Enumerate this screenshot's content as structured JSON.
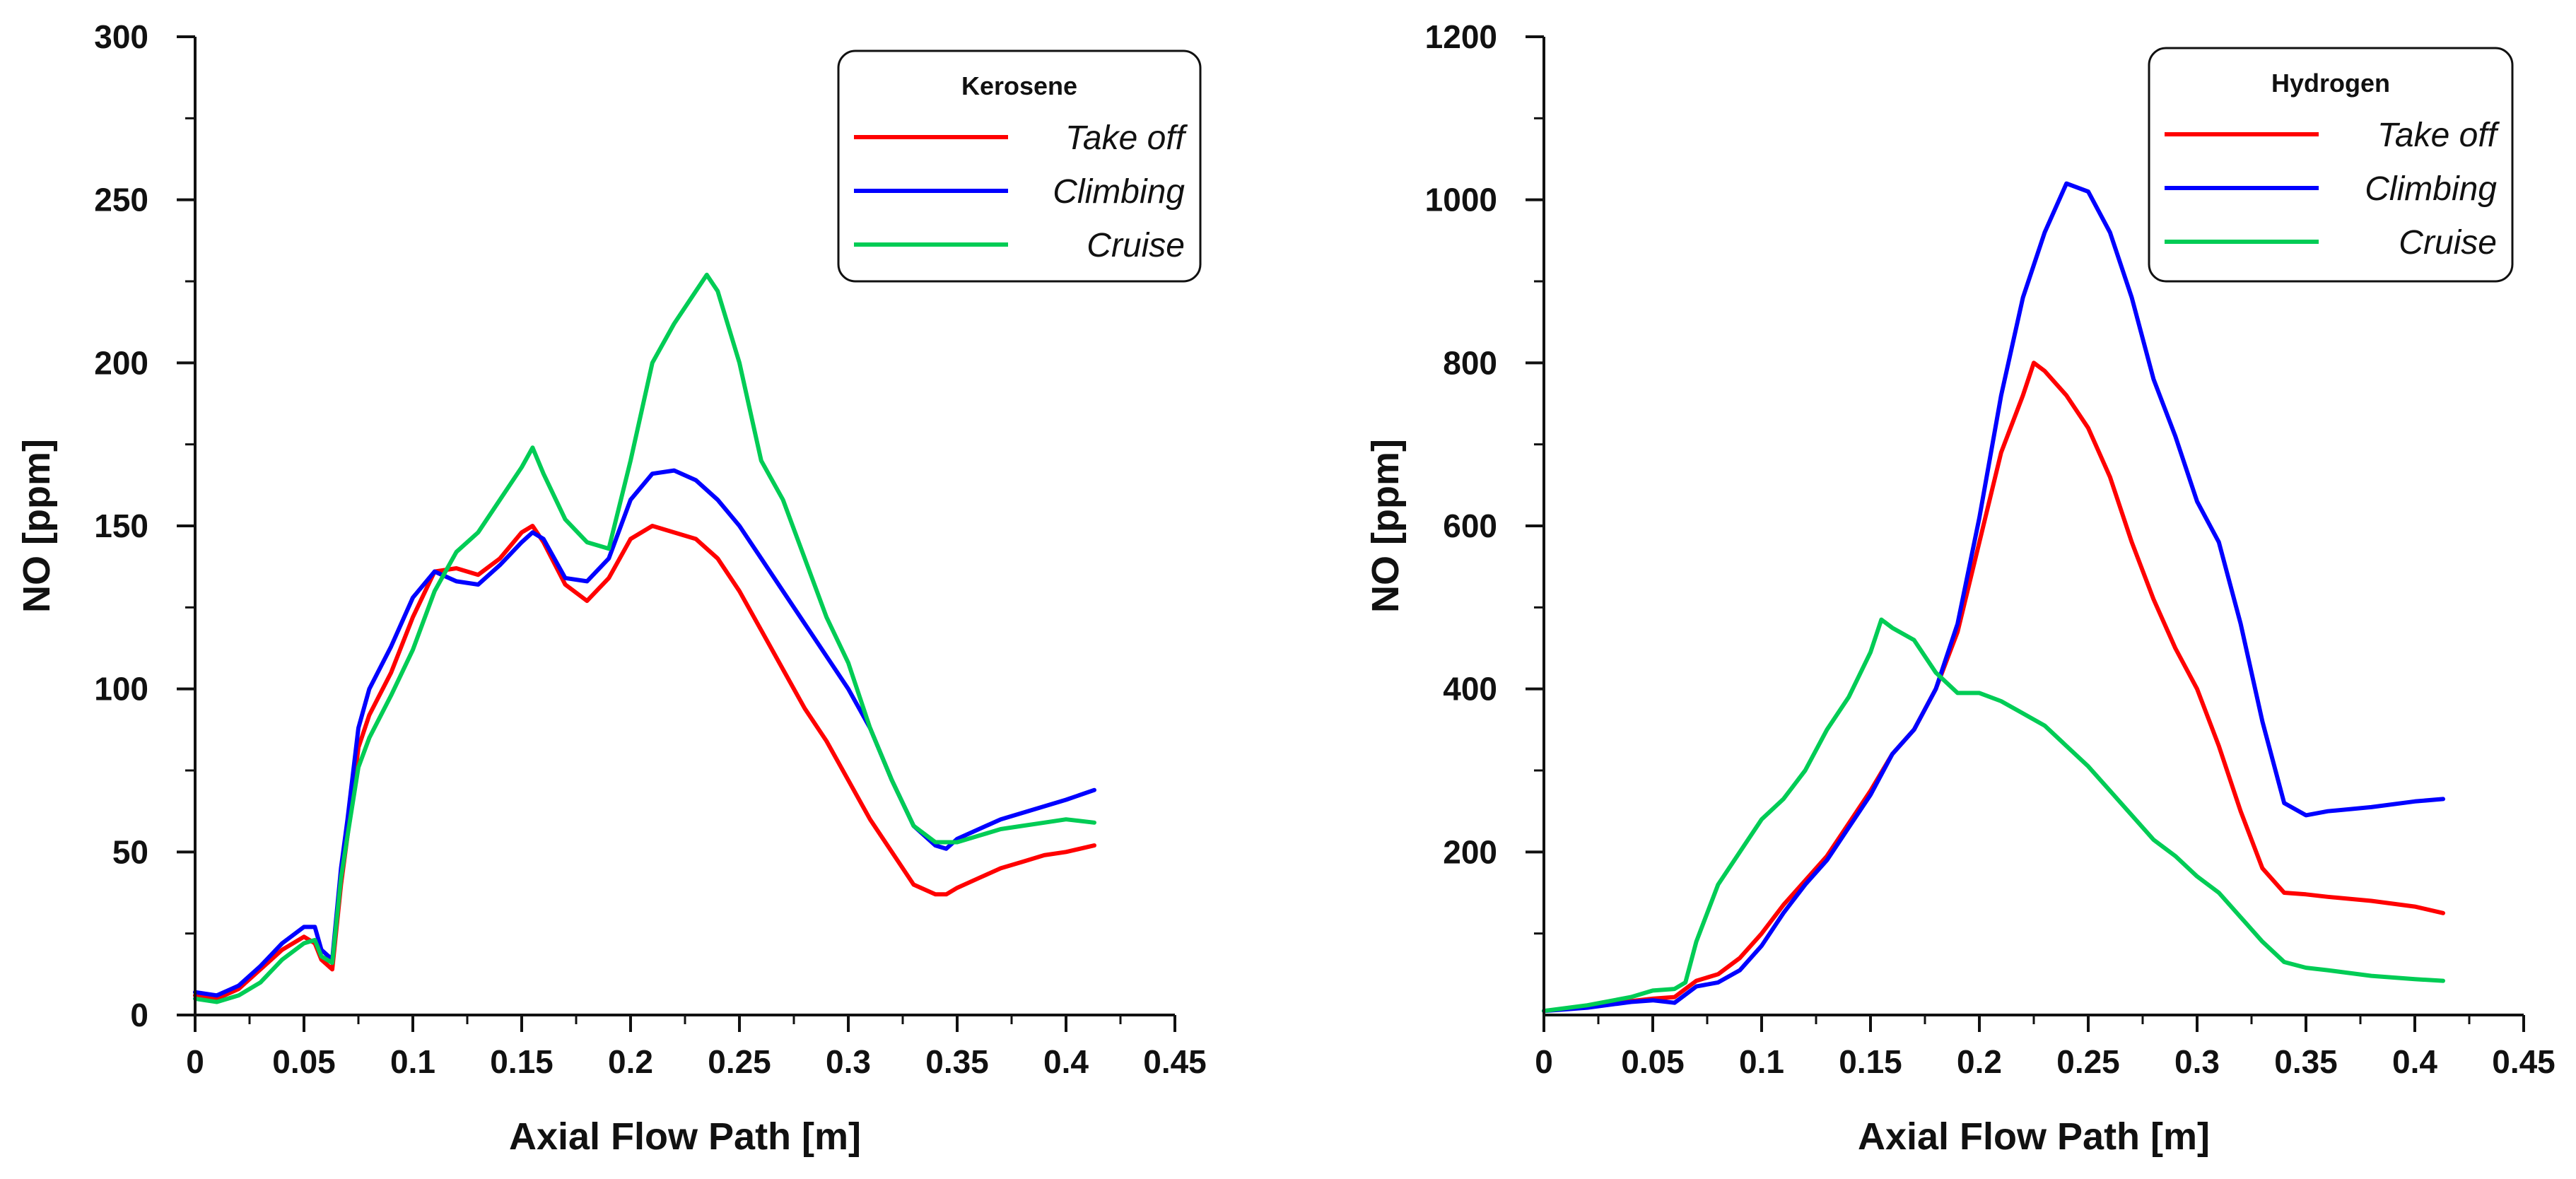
{
  "chart_data": [
    {
      "type": "line",
      "title": "",
      "legend_title": "Kerosene",
      "legend_position": "top-right",
      "xlabel": "Axial Flow Path [m]",
      "ylabel": "NO [ppm]",
      "xlim": [
        0,
        0.45
      ],
      "ylim": [
        0,
        300
      ],
      "x_ticks": [
        0,
        0.05,
        0.1,
        0.15,
        0.2,
        0.25,
        0.3,
        0.35,
        0.4,
        0.45
      ],
      "x_tick_labels": [
        "0",
        "0.05",
        "0.1",
        "0.15",
        "0.2",
        "0.25",
        "0.3",
        "0.35",
        "0.4",
        "0.45"
      ],
      "y_ticks": [
        0,
        50,
        100,
        150,
        200,
        250,
        300
      ],
      "y_tick_labels": [
        "0",
        "50",
        "100",
        "150",
        "200",
        "250",
        "300"
      ],
      "grid": false,
      "series": [
        {
          "name": "Take off",
          "color": "#ff0000",
          "x": [
            0,
            0.01,
            0.02,
            0.03,
            0.04,
            0.05,
            0.055,
            0.058,
            0.063,
            0.067,
            0.07,
            0.075,
            0.08,
            0.09,
            0.1,
            0.11,
            0.12,
            0.13,
            0.14,
            0.15,
            0.155,
            0.16,
            0.17,
            0.18,
            0.19,
            0.2,
            0.21,
            0.22,
            0.23,
            0.24,
            0.25,
            0.26,
            0.27,
            0.28,
            0.29,
            0.3,
            0.31,
            0.32,
            0.33,
            0.34,
            0.345,
            0.35,
            0.36,
            0.37,
            0.38,
            0.39,
            0.4,
            0.413
          ],
          "y": [
            6,
            5,
            8,
            14,
            20,
            24,
            22,
            17,
            14,
            40,
            55,
            82,
            92,
            105,
            122,
            136,
            137,
            135,
            140,
            148,
            150,
            145,
            132,
            127,
            134,
            146,
            150,
            148,
            146,
            140,
            130,
            118,
            106,
            94,
            84,
            72,
            60,
            50,
            40,
            37,
            37,
            39,
            42,
            45,
            47,
            49,
            50,
            52
          ]
        },
        {
          "name": "Climbing",
          "color": "#0000ff",
          "x": [
            0,
            0.01,
            0.02,
            0.03,
            0.04,
            0.05,
            0.055,
            0.058,
            0.063,
            0.067,
            0.07,
            0.075,
            0.08,
            0.09,
            0.1,
            0.11,
            0.12,
            0.13,
            0.14,
            0.15,
            0.155,
            0.16,
            0.17,
            0.18,
            0.19,
            0.2,
            0.21,
            0.22,
            0.23,
            0.24,
            0.25,
            0.26,
            0.27,
            0.28,
            0.29,
            0.3,
            0.31,
            0.32,
            0.33,
            0.34,
            0.345,
            0.35,
            0.36,
            0.37,
            0.38,
            0.39,
            0.4,
            0.413
          ],
          "y": [
            7,
            6,
            9,
            15,
            22,
            27,
            27,
            20,
            17,
            45,
            60,
            88,
            100,
            113,
            128,
            136,
            133,
            132,
            138,
            145,
            148,
            146,
            134,
            133,
            140,
            158,
            166,
            167,
            164,
            158,
            150,
            140,
            130,
            120,
            110,
            100,
            88,
            72,
            58,
            52,
            51,
            54,
            57,
            60,
            62,
            64,
            66,
            69
          ]
        },
        {
          "name": "Cruise",
          "color": "#00cc55",
          "x": [
            0,
            0.01,
            0.02,
            0.03,
            0.04,
            0.05,
            0.055,
            0.058,
            0.063,
            0.067,
            0.07,
            0.075,
            0.08,
            0.09,
            0.1,
            0.11,
            0.12,
            0.13,
            0.14,
            0.15,
            0.155,
            0.16,
            0.17,
            0.18,
            0.19,
            0.2,
            0.21,
            0.22,
            0.23,
            0.235,
            0.24,
            0.25,
            0.26,
            0.27,
            0.28,
            0.29,
            0.3,
            0.31,
            0.32,
            0.33,
            0.34,
            0.35,
            0.36,
            0.37,
            0.38,
            0.39,
            0.4,
            0.413
          ],
          "y": [
            5,
            4,
            6,
            10,
            17,
            22,
            23,
            18,
            16,
            42,
            55,
            76,
            85,
            98,
            112,
            130,
            142,
            148,
            158,
            168,
            174,
            166,
            152,
            145,
            143,
            170,
            200,
            212,
            222,
            227,
            222,
            200,
            170,
            158,
            140,
            122,
            108,
            88,
            72,
            58,
            53,
            53,
            55,
            57,
            58,
            59,
            60,
            59
          ]
        }
      ]
    },
    {
      "type": "line",
      "title": "",
      "legend_title": "Hydrogen",
      "legend_position": "top-right",
      "xlabel": "Axial Flow Path [m]",
      "ylabel": "NO [ppm]",
      "xlim": [
        0,
        0.45
      ],
      "ylim": [
        0,
        1200
      ],
      "x_ticks": [
        0,
        0.05,
        0.1,
        0.15,
        0.2,
        0.25,
        0.3,
        0.35,
        0.4,
        0.45
      ],
      "x_tick_labels": [
        "0",
        "0.05",
        "0.1",
        "0.15",
        "0.2",
        "0.25",
        "0.3",
        "0.35",
        "0.4",
        "0.45"
      ],
      "y_ticks": [
        200,
        400,
        600,
        800,
        1000,
        1200
      ],
      "y_tick_labels": [
        "200",
        "400",
        "600",
        "800",
        "1000",
        "1200"
      ],
      "grid": false,
      "series": [
        {
          "name": "Take off",
          "color": "#ff0000",
          "x": [
            0,
            0.02,
            0.04,
            0.05,
            0.06,
            0.07,
            0.08,
            0.09,
            0.1,
            0.11,
            0.12,
            0.13,
            0.14,
            0.15,
            0.16,
            0.17,
            0.18,
            0.19,
            0.2,
            0.21,
            0.22,
            0.225,
            0.23,
            0.24,
            0.25,
            0.26,
            0.27,
            0.28,
            0.29,
            0.3,
            0.31,
            0.32,
            0.33,
            0.34,
            0.35,
            0.36,
            0.38,
            0.4,
            0.413
          ],
          "y": [
            5,
            10,
            17,
            20,
            22,
            42,
            50,
            70,
            100,
            135,
            165,
            195,
            235,
            275,
            320,
            350,
            400,
            470,
            580,
            690,
            760,
            800,
            790,
            760,
            720,
            660,
            580,
            510,
            450,
            400,
            330,
            250,
            180,
            150,
            148,
            145,
            140,
            133,
            125
          ]
        },
        {
          "name": "Climbing",
          "color": "#0000ff",
          "x": [
            0,
            0.02,
            0.04,
            0.05,
            0.06,
            0.07,
            0.08,
            0.09,
            0.1,
            0.11,
            0.12,
            0.13,
            0.14,
            0.15,
            0.16,
            0.17,
            0.18,
            0.19,
            0.2,
            0.21,
            0.22,
            0.23,
            0.24,
            0.25,
            0.26,
            0.27,
            0.28,
            0.29,
            0.3,
            0.31,
            0.32,
            0.33,
            0.34,
            0.35,
            0.36,
            0.38,
            0.4,
            0.413
          ],
          "y": [
            5,
            9,
            16,
            18,
            15,
            35,
            40,
            55,
            85,
            125,
            160,
            190,
            230,
            270,
            320,
            350,
            400,
            480,
            610,
            760,
            880,
            960,
            1020,
            1010,
            960,
            880,
            780,
            710,
            630,
            580,
            480,
            360,
            260,
            245,
            250,
            255,
            262,
            265
          ]
        },
        {
          "name": "Cruise",
          "color": "#00cc55",
          "x": [
            0,
            0.02,
            0.04,
            0.05,
            0.06,
            0.065,
            0.07,
            0.08,
            0.09,
            0.1,
            0.11,
            0.12,
            0.13,
            0.14,
            0.15,
            0.155,
            0.16,
            0.17,
            0.18,
            0.19,
            0.2,
            0.21,
            0.22,
            0.23,
            0.24,
            0.25,
            0.26,
            0.27,
            0.28,
            0.29,
            0.3,
            0.31,
            0.32,
            0.33,
            0.34,
            0.35,
            0.36,
            0.38,
            0.4,
            0.413
          ],
          "y": [
            5,
            12,
            22,
            30,
            32,
            40,
            90,
            160,
            200,
            240,
            265,
            300,
            350,
            390,
            445,
            485,
            475,
            460,
            420,
            395,
            395,
            385,
            370,
            355,
            330,
            305,
            275,
            245,
            215,
            195,
            170,
            150,
            120,
            90,
            65,
            58,
            55,
            48,
            44,
            42
          ]
        }
      ]
    }
  ]
}
